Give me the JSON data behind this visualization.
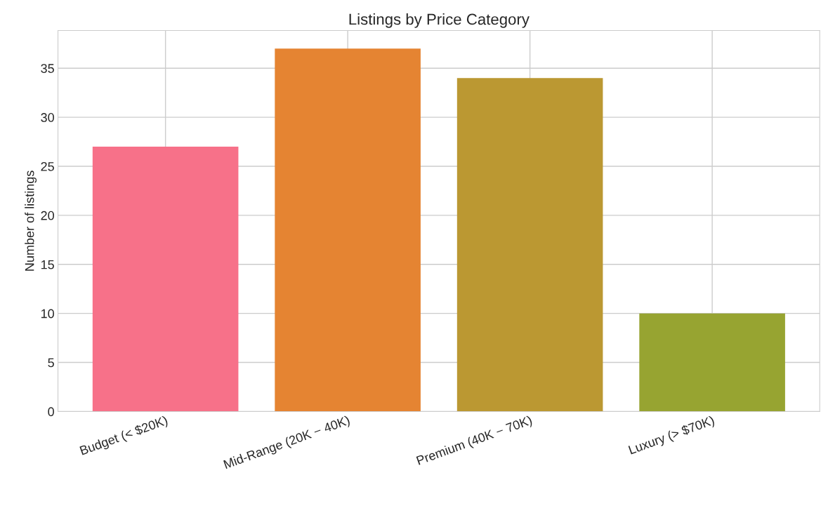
{
  "chart_data": {
    "type": "bar",
    "title": "Listings by Price Category",
    "ylabel": "Number of listings",
    "categories": [
      "Budget (< $20K)",
      "Mid-Range (20K − 40K)",
      "Premium (40K − 70K)",
      "Luxury (> $70K)"
    ],
    "values": [
      27,
      37,
      34,
      10
    ],
    "colors": [
      "#f77189",
      "#e58432",
      "#bb9832",
      "#97a431"
    ],
    "ylim": [
      0,
      38.85
    ],
    "yticks": [
      0,
      5,
      10,
      15,
      20,
      25,
      30,
      35
    ],
    "grid": true
  }
}
